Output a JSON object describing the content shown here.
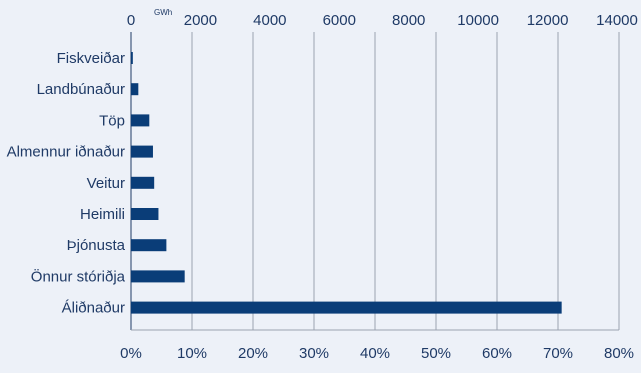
{
  "chart_data": {
    "type": "bar",
    "orientation": "horizontal",
    "categories": [
      "Fiskveiðar",
      "Landbúnaður",
      "Töp",
      "Almennur iðnaður",
      "Veitur",
      "Heimili",
      "Þjónusta",
      "Önnur stóriðja",
      "Áliðnaður"
    ],
    "values_percent": [
      0.3,
      1.2,
      3.0,
      3.6,
      3.8,
      4.5,
      5.8,
      8.8,
      70.6
    ],
    "top_axis": {
      "unit": "GWh",
      "ticks": [
        "0",
        "2000",
        "4000",
        "6000",
        "8000",
        "10000",
        "12000",
        "14000"
      ],
      "range": [
        0,
        14000
      ]
    },
    "bottom_axis": {
      "ticks": [
        "0%",
        "10%",
        "20%",
        "30%",
        "40%",
        "50%",
        "60%",
        "70%",
        "80%"
      ],
      "range": [
        0,
        80
      ]
    },
    "grid": true,
    "bar_color": "#0a3d78",
    "grid_color": "#9aa3b0",
    "text_color": "#1f3a66",
    "background": "#edf1f8"
  }
}
